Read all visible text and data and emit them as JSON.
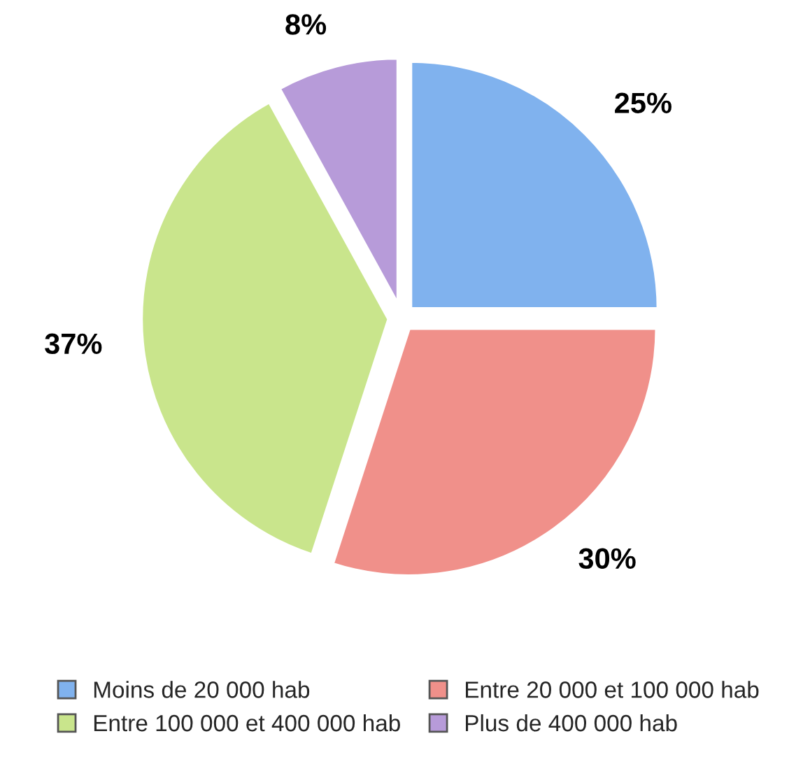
{
  "chart_data": {
    "type": "pie",
    "categories": [
      "Moins de 20 000 hab",
      "Entre 20 000 et 100 000 hab",
      "Entre 100 000 et 400 000 hab",
      "Plus de 400 000 hab"
    ],
    "values": [
      25,
      30,
      37,
      8
    ],
    "value_labels": [
      "25%",
      "30%",
      "37%",
      "8%"
    ],
    "colors": [
      "#80b2ee",
      "#f0908a",
      "#c9e58c",
      "#b79bd9"
    ],
    "legend": "bottom"
  }
}
